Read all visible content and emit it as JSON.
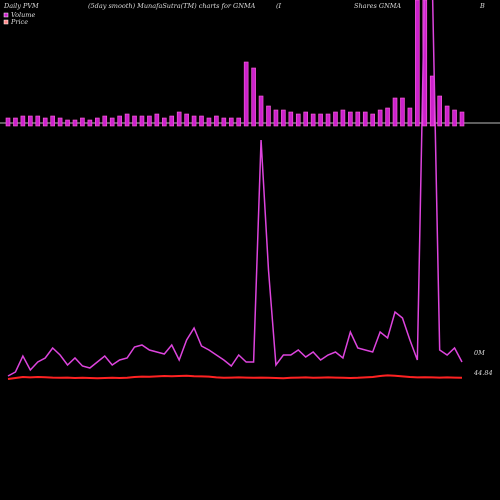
{
  "chart_data": {
    "type": "pvm",
    "title_left": "Daily PVM",
    "title_mid": "(5day smooth) MunafaSutra(TM) charts for GNMA",
    "title_i": "(I",
    "title_shares": "Shares GNMA",
    "title_b": "B",
    "volume_label": "0M",
    "price_label": "44.84",
    "legend": [
      "Volume",
      "Price"
    ],
    "bar_color": "#cc22cc",
    "volume_line_color": "#dd44dd",
    "price_color": "#ff2222",
    "bar_ylim": [
      0,
      126
    ],
    "volume_line_ylim": [
      0,
      378
    ],
    "price_ylim": [
      43,
      47
    ],
    "volume_bars": [
      8,
      8,
      10,
      10,
      10,
      8,
      10,
      8,
      6,
      6,
      8,
      6,
      8,
      10,
      8,
      10,
      12,
      10,
      10,
      10,
      12,
      8,
      10,
      14,
      12,
      10,
      10,
      8,
      10,
      8,
      8,
      8,
      64,
      58,
      30,
      20,
      16,
      16,
      14,
      12,
      14,
      12,
      12,
      12,
      14,
      16,
      14,
      14,
      14,
      12,
      16,
      18,
      28,
      28,
      18,
      126,
      126,
      50,
      30,
      20,
      16,
      14
    ],
    "volume_line": [
      2,
      6,
      22,
      8,
      16,
      20,
      30,
      23,
      13,
      20,
      12,
      10,
      16,
      22,
      13,
      18,
      20,
      31,
      33,
      28,
      26,
      24,
      33,
      18,
      38,
      50,
      32,
      28,
      23,
      18,
      12,
      23,
      16,
      16,
      238,
      108,
      13,
      23,
      23,
      28,
      21,
      26,
      18,
      23,
      26,
      20,
      46,
      30,
      28,
      26,
      46,
      40,
      66,
      60,
      38,
      18,
      400,
      400,
      28,
      23,
      30,
      16
    ],
    "price": [
      44.7,
      44.75,
      44.8,
      44.78,
      44.8,
      44.79,
      44.77,
      44.76,
      44.77,
      44.75,
      44.76,
      44.75,
      44.74,
      44.75,
      44.76,
      44.75,
      44.76,
      44.8,
      44.82,
      44.81,
      44.83,
      44.85,
      44.84,
      44.85,
      44.86,
      44.84,
      44.83,
      44.82,
      44.78,
      44.76,
      44.77,
      44.78,
      44.77,
      44.76,
      44.77,
      44.76,
      44.75,
      44.74,
      44.76,
      44.77,
      44.78,
      44.76,
      44.77,
      44.78,
      44.77,
      44.76,
      44.75,
      44.76,
      44.78,
      44.8,
      44.85,
      44.88,
      44.86,
      44.83,
      44.8,
      44.78,
      44.79,
      44.78,
      44.77,
      44.78,
      44.77,
      44.76
    ]
  }
}
